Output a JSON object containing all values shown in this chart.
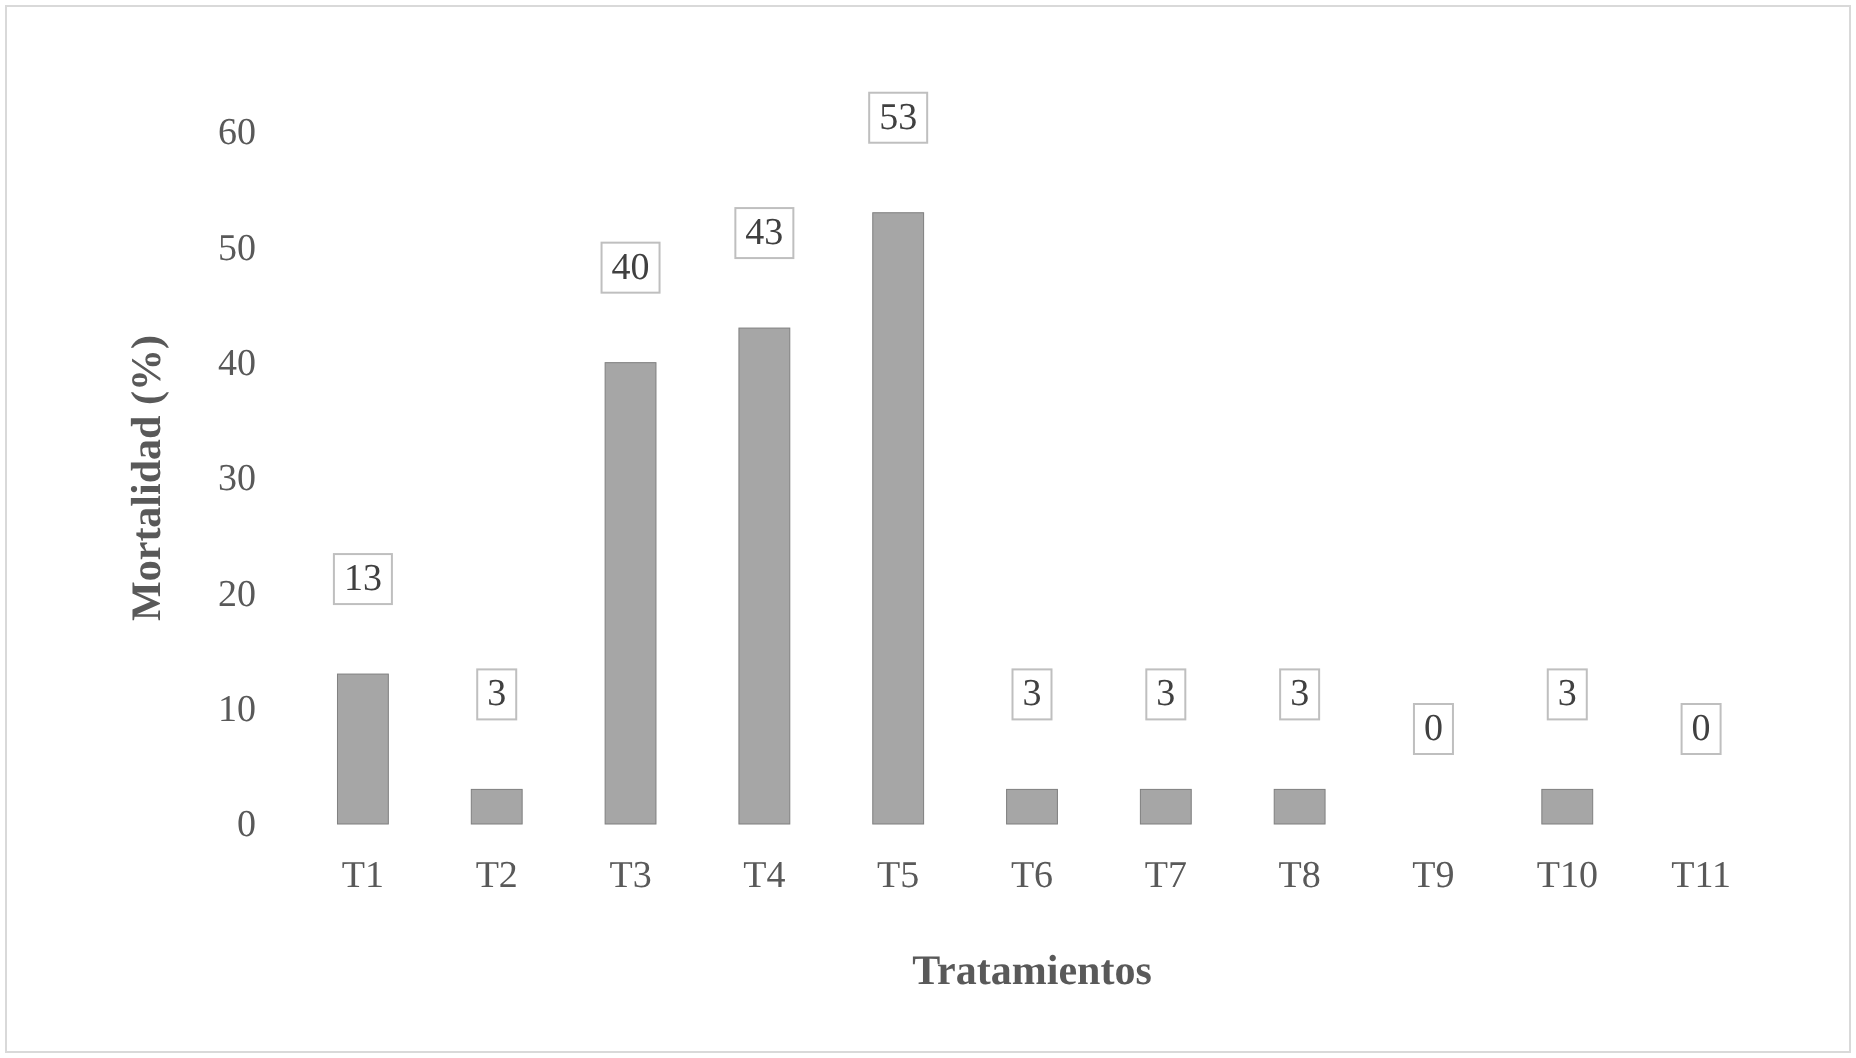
{
  "chart_data": {
    "type": "bar",
    "xlabel": "Tratamientos",
    "ylabel": "Mortalidad (%)",
    "categories": [
      "T1",
      "T2",
      "T3",
      "T4",
      "T5",
      "T6",
      "T7",
      "T8",
      "T9",
      "T10",
      "T11"
    ],
    "values": [
      13,
      3,
      40,
      43,
      53,
      3,
      3,
      3,
      0,
      3,
      0
    ],
    "color": "#a6a6a6",
    "ylim": [
      0,
      60
    ],
    "yticks": [
      0,
      10,
      20,
      30,
      40,
      50,
      60
    ],
    "grid": false,
    "data_labels": true
  }
}
